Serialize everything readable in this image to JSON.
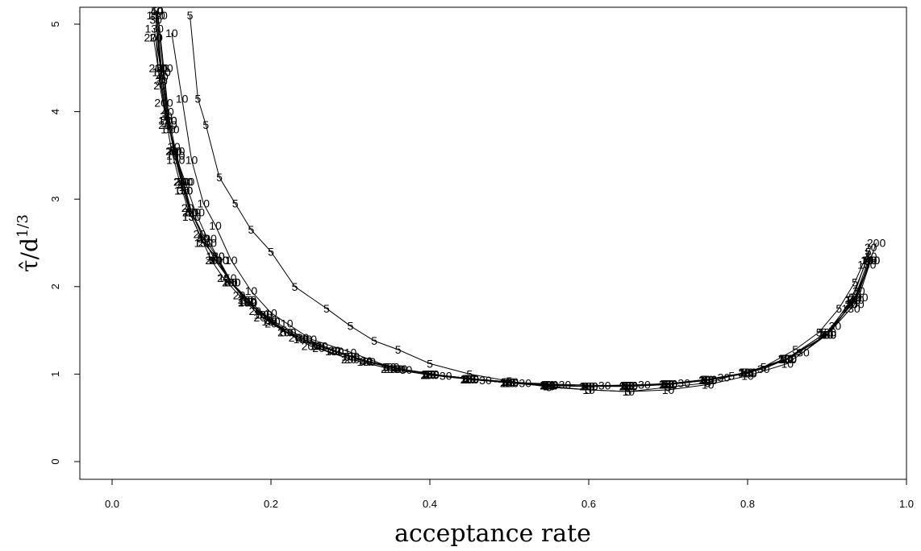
{
  "chart_data": {
    "type": "line",
    "xlabel": "acceptance rate",
    "ylabel": "τ̂/d^(1/3)",
    "ylabel_parts": {
      "base": "τ̂/d",
      "exponent": "1/3"
    },
    "xlim": [
      0.0,
      1.0
    ],
    "ylim": [
      0,
      5
    ],
    "xticks": [
      0.0,
      0.2,
      0.4,
      0.6,
      0.8,
      1.0
    ],
    "xtick_labels": [
      "0.0",
      "0.2",
      "0.4",
      "0.6",
      "0.8",
      "1.0"
    ],
    "yticks": [
      0,
      1,
      2,
      3,
      4,
      5
    ],
    "ytick_labels": [
      "0",
      "1",
      "2",
      "3",
      "4",
      "5"
    ],
    "grid": false,
    "legend": "none",
    "marker_style": "dimension labels plotted as point markers",
    "series": [
      {
        "name": "5",
        "x": [
          0.098,
          0.108,
          0.118,
          0.135,
          0.155,
          0.175,
          0.2,
          0.23,
          0.27,
          0.3,
          0.33,
          0.36,
          0.4,
          0.45,
          0.5,
          0.55,
          0.6,
          0.65,
          0.7,
          0.75,
          0.78,
          0.82,
          0.86,
          0.89,
          0.915,
          0.935,
          0.952
        ],
        "y": [
          5.1,
          4.15,
          3.85,
          3.25,
          2.95,
          2.65,
          2.4,
          2.0,
          1.75,
          1.55,
          1.38,
          1.28,
          1.12,
          1.0,
          0.92,
          0.85,
          0.82,
          0.8,
          0.85,
          0.9,
          0.98,
          1.08,
          1.28,
          1.48,
          1.75,
          2.05,
          2.4
        ]
      },
      {
        "name": "10",
        "x": [
          0.075,
          0.088,
          0.1,
          0.115,
          0.13,
          0.15,
          0.175,
          0.2,
          0.22,
          0.25,
          0.3,
          0.35,
          0.4,
          0.45,
          0.5,
          0.55,
          0.6,
          0.65,
          0.7,
          0.75,
          0.8,
          0.85,
          0.9,
          0.93,
          0.95
        ],
        "y": [
          4.9,
          4.15,
          3.45,
          2.95,
          2.7,
          2.3,
          1.95,
          1.7,
          1.58,
          1.4,
          1.25,
          1.08,
          1.0,
          0.95,
          0.9,
          0.86,
          0.82,
          0.8,
          0.82,
          0.88,
          0.98,
          1.12,
          1.45,
          1.85,
          2.3
        ]
      },
      {
        "name": "20",
        "x": [
          0.055,
          0.06,
          0.068,
          0.075,
          0.085,
          0.095,
          0.11,
          0.125,
          0.14,
          0.16,
          0.18,
          0.2,
          0.23,
          0.26,
          0.3,
          0.35,
          0.4,
          0.45,
          0.5,
          0.55,
          0.6,
          0.65,
          0.7,
          0.75,
          0.8,
          0.85,
          0.9,
          0.93,
          0.955
        ],
        "y": [
          4.85,
          4.3,
          3.9,
          3.55,
          3.2,
          2.9,
          2.6,
          2.3,
          2.1,
          1.9,
          1.72,
          1.58,
          1.42,
          1.3,
          1.17,
          1.06,
          0.99,
          0.94,
          0.9,
          0.87,
          0.86,
          0.86,
          0.88,
          0.93,
          1.02,
          1.18,
          1.45,
          1.8,
          2.45
        ]
      },
      {
        "name": "30",
        "x": [
          0.055,
          0.062,
          0.068,
          0.078,
          0.09,
          0.1,
          0.115,
          0.13,
          0.15,
          0.17,
          0.2,
          0.24,
          0.28,
          0.32,
          0.37,
          0.42,
          0.47,
          0.52,
          0.57,
          0.62,
          0.67,
          0.72,
          0.77,
          0.82,
          0.87,
          0.91,
          0.94,
          0.955
        ],
        "y": [
          5.05,
          4.35,
          3.95,
          3.6,
          3.1,
          2.85,
          2.55,
          2.3,
          2.05,
          1.85,
          1.62,
          1.42,
          1.27,
          1.15,
          1.05,
          0.98,
          0.93,
          0.9,
          0.88,
          0.87,
          0.88,
          0.9,
          0.96,
          1.06,
          1.25,
          1.55,
          1.95,
          2.35
        ]
      },
      {
        "name": "40",
        "x": [
          0.056,
          0.063,
          0.07,
          0.08,
          0.09,
          0.1,
          0.115,
          0.13,
          0.15,
          0.175,
          0.2,
          0.24,
          0.28,
          0.32,
          0.36,
          0.4,
          0.45,
          0.5,
          0.55,
          0.6,
          0.65,
          0.7,
          0.75,
          0.8,
          0.85,
          0.9,
          0.935,
          0.955
        ],
        "y": [
          5.15,
          4.4,
          4.0,
          3.55,
          3.15,
          2.85,
          2.55,
          2.3,
          2.05,
          1.82,
          1.6,
          1.4,
          1.26,
          1.14,
          1.06,
          1.0,
          0.94,
          0.9,
          0.87,
          0.86,
          0.87,
          0.89,
          0.93,
          1.01,
          1.17,
          1.45,
          1.85,
          2.3
        ]
      },
      {
        "name": "50",
        "x": [
          0.057,
          0.064,
          0.072,
          0.08,
          0.09,
          0.1,
          0.115,
          0.13,
          0.15,
          0.17,
          0.19,
          0.22,
          0.26,
          0.3,
          0.35,
          0.4,
          0.45,
          0.5,
          0.55,
          0.6,
          0.65,
          0.7,
          0.75,
          0.8,
          0.85,
          0.9,
          0.935,
          0.955
        ],
        "y": [
          5.15,
          4.5,
          3.8,
          3.55,
          3.2,
          2.85,
          2.55,
          2.3,
          2.05,
          1.83,
          1.68,
          1.48,
          1.32,
          1.2,
          1.08,
          1.0,
          0.95,
          0.91,
          0.88,
          0.86,
          0.87,
          0.89,
          0.94,
          1.02,
          1.18,
          1.48,
          1.88,
          2.3
        ]
      },
      {
        "name": "100",
        "x": [
          0.058,
          0.065,
          0.073,
          0.08,
          0.092,
          0.105,
          0.12,
          0.135,
          0.15,
          0.17,
          0.19,
          0.22,
          0.26,
          0.3,
          0.35,
          0.4,
          0.45,
          0.5,
          0.55,
          0.6,
          0.65,
          0.7,
          0.75,
          0.8,
          0.85,
          0.9,
          0.94,
          0.955
        ],
        "y": [
          5.1,
          4.5,
          3.8,
          3.5,
          3.2,
          2.85,
          2.55,
          2.3,
          2.05,
          1.83,
          1.68,
          1.48,
          1.32,
          1.2,
          1.08,
          1.0,
          0.95,
          0.91,
          0.88,
          0.86,
          0.87,
          0.89,
          0.94,
          1.02,
          1.18,
          1.48,
          1.88,
          2.3
        ]
      },
      {
        "name": "130",
        "x": [
          0.053,
          0.062,
          0.07,
          0.08,
          0.09,
          0.1,
          0.115,
          0.13,
          0.15,
          0.17,
          0.2,
          0.24,
          0.28,
          0.32,
          0.36,
          0.4,
          0.45,
          0.5,
          0.55,
          0.6,
          0.65,
          0.7,
          0.75,
          0.8,
          0.85,
          0.9,
          0.93,
          0.95
        ],
        "y": [
          4.95,
          4.45,
          3.9,
          3.45,
          3.1,
          2.8,
          2.5,
          2.35,
          2.05,
          1.82,
          1.6,
          1.4,
          1.26,
          1.14,
          1.06,
          1.0,
          0.94,
          0.9,
          0.87,
          0.86,
          0.87,
          0.89,
          0.93,
          1.01,
          1.17,
          1.45,
          1.75,
          2.25
        ]
      },
      {
        "name": "150",
        "x": [
          0.055,
          0.062,
          0.07,
          0.08,
          0.09,
          0.1,
          0.115,
          0.13,
          0.145,
          0.17,
          0.2,
          0.24,
          0.28,
          0.32,
          0.36,
          0.4,
          0.45,
          0.5,
          0.55,
          0.6,
          0.65,
          0.7,
          0.75,
          0.8,
          0.85,
          0.9,
          0.935,
          0.955
        ],
        "y": [
          5.1,
          4.45,
          3.9,
          3.5,
          3.1,
          2.8,
          2.5,
          2.35,
          2.1,
          1.82,
          1.6,
          1.4,
          1.26,
          1.14,
          1.06,
          1.0,
          0.94,
          0.9,
          0.87,
          0.86,
          0.87,
          0.89,
          0.93,
          1.01,
          1.17,
          1.45,
          1.85,
          2.3
        ]
      },
      {
        "name": "200",
        "x": [
          0.052,
          0.058,
          0.065,
          0.07,
          0.08,
          0.09,
          0.1,
          0.12,
          0.135,
          0.15,
          0.17,
          0.19,
          0.22,
          0.25,
          0.3,
          0.35,
          0.4,
          0.45,
          0.5,
          0.55,
          0.6,
          0.65,
          0.7,
          0.75,
          0.8,
          0.85,
          0.9,
          0.935,
          0.962
        ],
        "y": [
          4.85,
          4.5,
          4.1,
          3.85,
          3.55,
          3.2,
          2.85,
          2.5,
          2.3,
          2.05,
          1.85,
          1.65,
          1.48,
          1.32,
          1.17,
          1.06,
          0.99,
          0.94,
          0.9,
          0.87,
          0.86,
          0.86,
          0.88,
          0.93,
          1.02,
          1.18,
          1.45,
          1.8,
          2.5
        ]
      }
    ]
  }
}
